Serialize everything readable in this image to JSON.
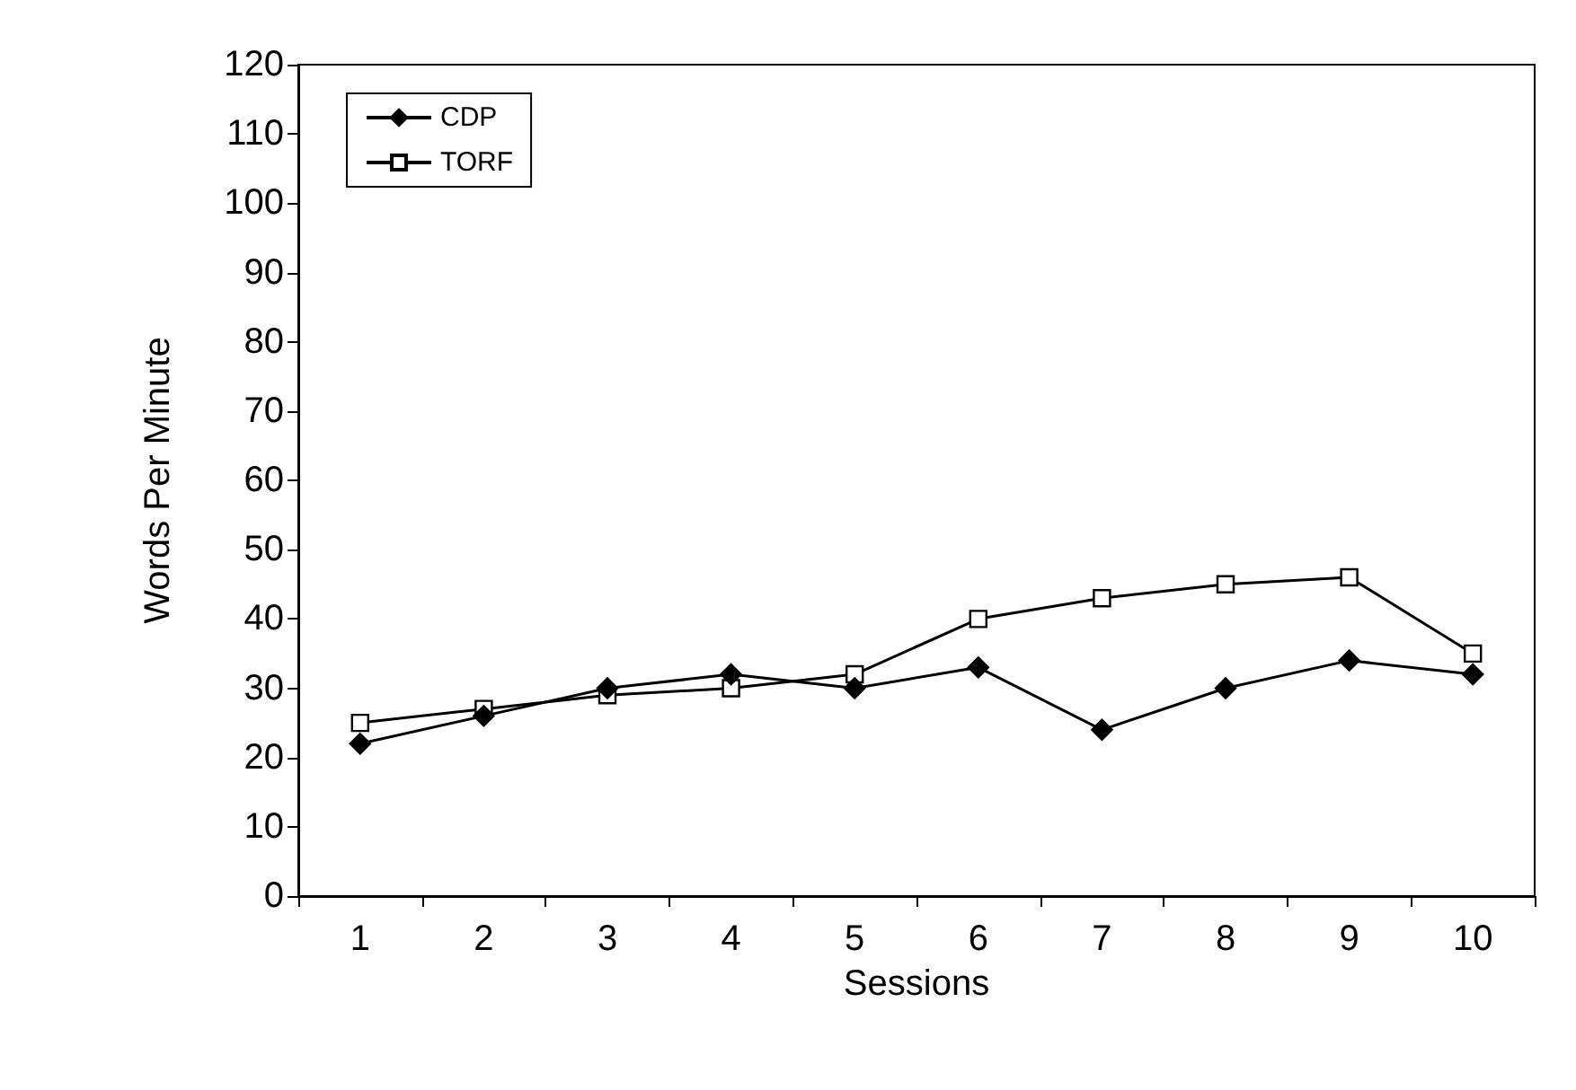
{
  "chart_data": {
    "type": "line",
    "xlabel": "Sessions",
    "ylabel": "Words Per Minute",
    "categories": [
      "1",
      "2",
      "3",
      "4",
      "5",
      "6",
      "7",
      "8",
      "9",
      "10"
    ],
    "series": [
      {
        "name": "CDP",
        "color": "#000000",
        "marker": "diamond",
        "values": [
          22,
          26,
          30,
          32,
          30,
          33,
          24,
          30,
          34,
          32
        ]
      },
      {
        "name": "TORF",
        "color": "#000000",
        "marker": "square",
        "values": [
          25,
          27,
          29,
          30,
          32,
          40,
          43,
          45,
          46,
          35
        ]
      }
    ],
    "ylim": [
      0,
      120
    ],
    "yticks": [
      0,
      10,
      20,
      30,
      40,
      50,
      60,
      70,
      80,
      90,
      100,
      110,
      120
    ],
    "grid": false,
    "legend": "top left",
    "line_style": "solid"
  }
}
